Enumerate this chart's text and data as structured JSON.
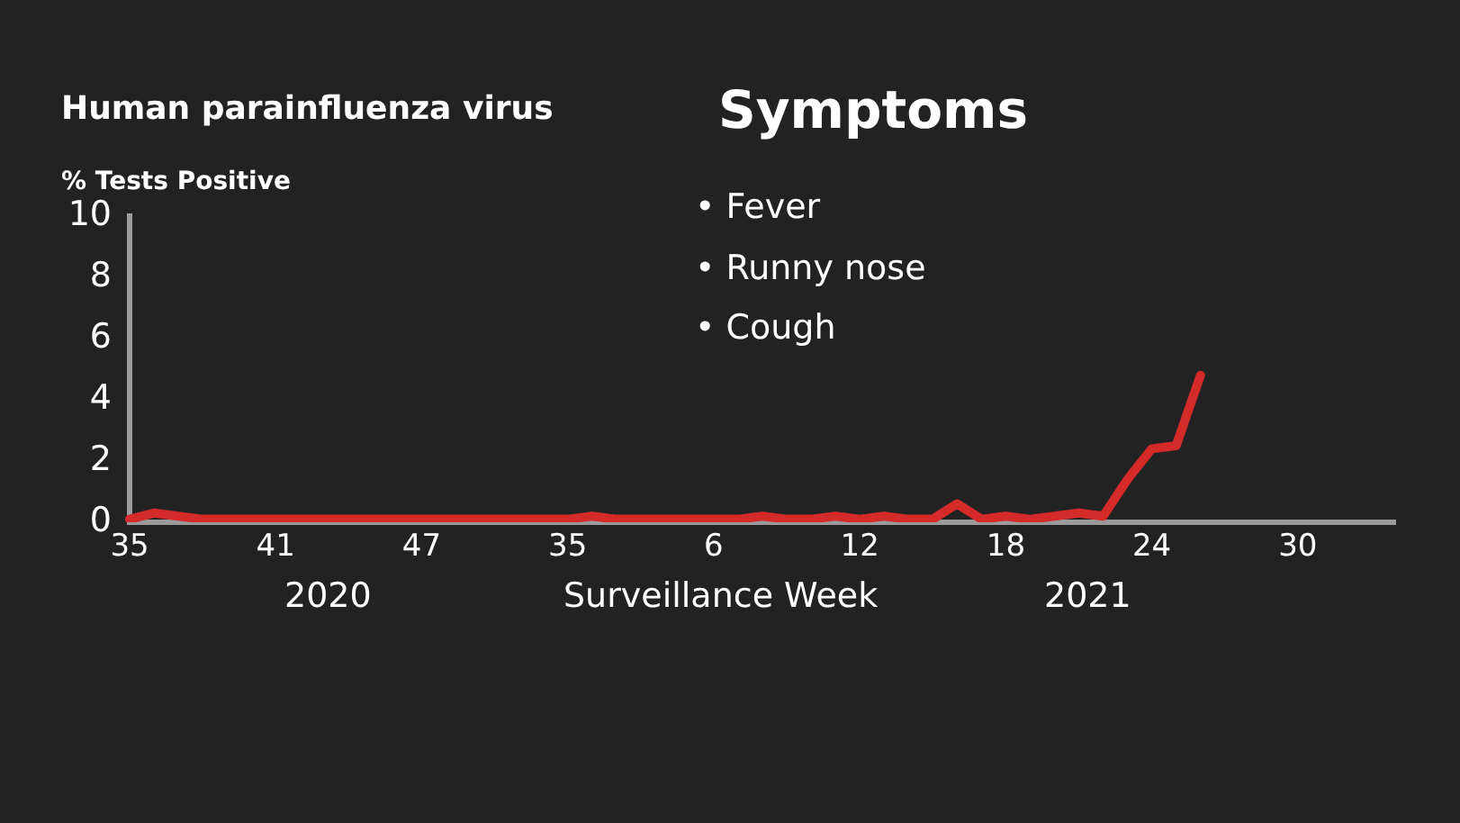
{
  "chart_data": {
    "type": "line",
    "title": "Human parainfluenza virus",
    "ylabel": "% Tests Positive",
    "xlabel": "Surveillance Week",
    "annotations": [
      "Symptoms",
      "• Fever",
      "• Runny nose",
      "• Cough",
      "2020",
      "2021"
    ],
    "categories": [
      "35",
      null,
      null,
      null,
      null,
      null,
      "41",
      null,
      null,
      null,
      null,
      null,
      "47",
      null,
      null,
      null,
      null,
      null,
      "35",
      null,
      null,
      null,
      null,
      null,
      "6",
      null,
      null,
      null,
      null,
      null,
      "12",
      null,
      null,
      null,
      null,
      null,
      "18",
      null,
      null,
      null,
      null,
      null,
      "24",
      null,
      null,
      null,
      null,
      null,
      "30",
      null,
      null,
      null,
      null
    ],
    "series": [
      {
        "color": "#d42a2a",
        "values": [
          0.1,
          0.3,
          0.2,
          0.1,
          0.1,
          0.1,
          0.1,
          0.1,
          0.1,
          0.1,
          0.1,
          0.1,
          0.1,
          0.1,
          0.1,
          0.1,
          0.1,
          0.1,
          0.1,
          0.2,
          0.1,
          0.1,
          0.1,
          0.1,
          0.1,
          0.1,
          0.2,
          0.1,
          0.1,
          0.2,
          0.1,
          0.2,
          0.1,
          0.1,
          0.6,
          0.1,
          0.2,
          0.1,
          0.2,
          0.3,
          0.2,
          1.4,
          2.4,
          2.5,
          4.8,
          null,
          null,
          null,
          null,
          null,
          null,
          null,
          null
        ]
      }
    ],
    "ylim": [
      0,
      10
    ],
    "yticks": [
      0,
      2,
      4,
      6,
      8,
      10
    ],
    "legend": false
  }
}
